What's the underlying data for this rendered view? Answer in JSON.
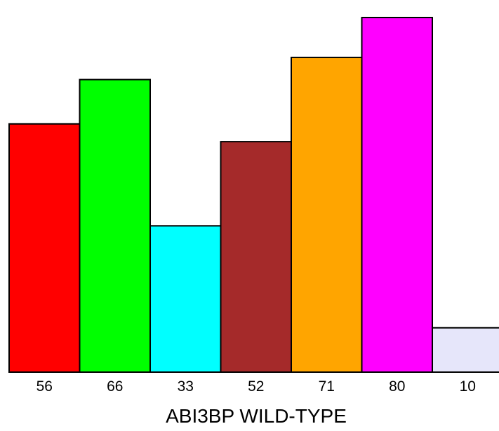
{
  "chart_data": {
    "type": "bar",
    "categories": [
      "56",
      "66",
      "33",
      "52",
      "71",
      "80",
      "10"
    ],
    "values": [
      56,
      66,
      33,
      52,
      71,
      80,
      10
    ],
    "colors": [
      "#ff0000",
      "#00ff00",
      "#00ffff",
      "#a52a2a",
      "#ffa500",
      "#ff00ff",
      "#e6e6fa"
    ],
    "xlabel": "ABI3BP WILD-TYPE",
    "ylabel": "",
    "ylim": [
      0,
      80
    ],
    "grid": false,
    "legend": "none"
  }
}
